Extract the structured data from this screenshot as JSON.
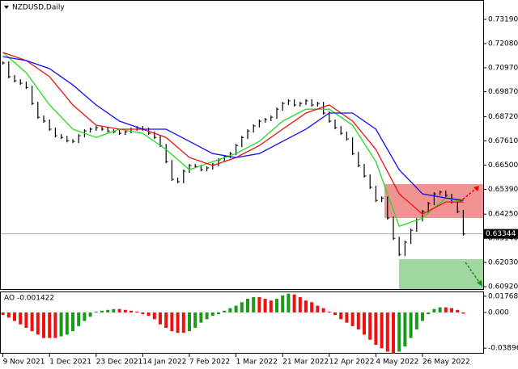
{
  "chart_data": {
    "type": "ohlc",
    "title": "NZDUSD,Daily",
    "categories": [
      "9 Nov 2021",
      null,
      null,
      null,
      null,
      null,
      null,
      null,
      "1 Dec 2021",
      null,
      null,
      null,
      null,
      null,
      null,
      null,
      "23 Dec 2021",
      null,
      null,
      null,
      null,
      null,
      null,
      null,
      "14 Jan 2022",
      null,
      null,
      null,
      null,
      null,
      null,
      null,
      "7 Feb 2022",
      null,
      null,
      null,
      null,
      null,
      null,
      null,
      "1 Mar 2022",
      null,
      null,
      null,
      null,
      null,
      null,
      null,
      "21 Mar 2022",
      null,
      null,
      null,
      null,
      null,
      null,
      null,
      "12 Apr 2022",
      null,
      null,
      null,
      null,
      null,
      null,
      null,
      "4 May 2022",
      null,
      null,
      null,
      null,
      null,
      null,
      null,
      "26 May 2022",
      null,
      null,
      null,
      null,
      null,
      null,
      null
    ],
    "close": [
      0.7119,
      0.7056,
      0.7037,
      0.7026,
      0.7007,
      0.6933,
      0.687,
      0.6852,
      0.6815,
      0.6785,
      0.6777,
      0.6762,
      0.6759,
      0.6785,
      0.6807,
      0.6815,
      0.6822,
      0.6815,
      0.6807,
      0.6803,
      0.6796,
      0.6803,
      0.6815,
      0.6822,
      0.6815,
      0.6796,
      0.6777,
      0.674,
      0.6666,
      0.6585,
      0.6574,
      0.6622,
      0.6648,
      0.6644,
      0.6629,
      0.6637,
      0.6652,
      0.6674,
      0.6689,
      0.6703,
      0.674,
      0.6777,
      0.6807,
      0.683,
      0.6852,
      0.6859,
      0.687,
      0.6907,
      0.6933,
      0.6945,
      0.6926,
      0.6933,
      0.6945,
      0.6926,
      0.6933,
      0.6889,
      0.6852,
      0.6822,
      0.6796,
      0.677,
      0.6703,
      0.6648,
      0.66,
      0.6548,
      0.6488,
      0.6499,
      0.6407,
      0.6314,
      0.624,
      0.6296,
      0.6351,
      0.6399,
      0.6437,
      0.6474,
      0.6518,
      0.6526,
      0.6511,
      0.6481,
      0.6437,
      0.6334
    ],
    "bar_color": "#000000",
    "series": [
      {
        "color": "#22dd22",
        "x": [
          0,
          4,
          8,
          12,
          16,
          20,
          24,
          28,
          32,
          36,
          40,
          44,
          48,
          52,
          56,
          60,
          64,
          68,
          72,
          76,
          79
        ],
        "values": [
          0.7167,
          0.7074,
          0.6926,
          0.6815,
          0.6777,
          0.6815,
          0.6796,
          0.6722,
          0.6629,
          0.6666,
          0.6703,
          0.6759,
          0.6852,
          0.6907,
          0.6907,
          0.6833,
          0.6666,
          0.6369,
          0.6407,
          0.6499,
          0.6481
        ]
      },
      {
        "color": "#ee1111",
        "x": [
          0,
          4,
          8,
          12,
          16,
          20,
          24,
          28,
          32,
          36,
          40,
          44,
          48,
          52,
          56,
          60,
          64,
          68,
          72,
          76,
          79
        ],
        "values": [
          0.7167,
          0.713,
          0.7056,
          0.6926,
          0.6833,
          0.6815,
          0.6815,
          0.6777,
          0.6685,
          0.6648,
          0.6685,
          0.674,
          0.6815,
          0.6889,
          0.6926,
          0.6852,
          0.6722,
          0.6518,
          0.6425,
          0.6481,
          0.6481
        ]
      },
      {
        "color": "#1111ee",
        "x": [
          0,
          4,
          8,
          12,
          16,
          20,
          24,
          28,
          32,
          36,
          40,
          44,
          48,
          52,
          56,
          60,
          64,
          68,
          72,
          76,
          79
        ],
        "values": [
          0.7148,
          0.713,
          0.7093,
          0.7018,
          0.6926,
          0.6852,
          0.6815,
          0.6815,
          0.6759,
          0.6703,
          0.6685,
          0.6703,
          0.6759,
          0.6815,
          0.6889,
          0.6889,
          0.6815,
          0.6629,
          0.6518,
          0.6499,
          0.6488
        ]
      }
    ],
    "last_price": 0.63344,
    "ylim": [
      0.6081,
      0.7408
    ],
    "yticks": [
      {
        "value": 0.7319,
        "label": "0.73190"
      },
      {
        "value": 0.7208,
        "label": "0.72080"
      },
      {
        "value": 0.7097,
        "label": "0.70970"
      },
      {
        "value": 0.6987,
        "label": "0.69870"
      },
      {
        "value": 0.6872,
        "label": "0.68720"
      },
      {
        "value": 0.6761,
        "label": "0.67610"
      },
      {
        "value": 0.665,
        "label": "0.66500"
      },
      {
        "value": 0.6539,
        "label": "0.65390"
      },
      {
        "value": 0.6425,
        "label": "0.64250"
      },
      {
        "value": 0.6314,
        "label": "0.63140"
      },
      {
        "value": 0.6203,
        "label": "0.62030"
      },
      {
        "value": 0.6092,
        "label": "0.60920"
      }
    ],
    "indicator": {
      "type": "histogram",
      "title": "AO -0.001422",
      "values": [
        -0.0028,
        -0.0056,
        -0.0093,
        -0.013,
        -0.0168,
        -0.0205,
        -0.0242,
        -0.0279,
        -0.0279,
        -0.0279,
        -0.0261,
        -0.0242,
        -0.0205,
        -0.0149,
        -0.0093,
        -0.0047,
        0.0009,
        0.0019,
        0.0028,
        0.0037,
        0.0037,
        0.0028,
        0.0019,
        0.0009,
        -0.0019,
        -0.0037,
        -0.0074,
        -0.013,
        -0.0168,
        -0.0205,
        -0.0223,
        -0.0223,
        -0.0205,
        -0.0168,
        -0.0112,
        -0.0074,
        -0.0037,
        -0.0019,
        0.0019,
        0.0047,
        0.0074,
        0.0112,
        0.0149,
        0.0168,
        0.0168,
        0.0149,
        0.013,
        0.0149,
        0.0186,
        0.0205,
        0.0196,
        0.0168,
        0.013,
        0.0112,
        0.0074,
        0.0047,
        0.0009,
        -0.0028,
        -0.0074,
        -0.0112,
        -0.0149,
        -0.0186,
        -0.0242,
        -0.0298,
        -0.0354,
        -0.0391,
        -0.0428,
        -0.0447,
        -0.0428,
        -0.0372,
        -0.0279,
        -0.0186,
        -0.0093,
        -0.0019,
        0.0037,
        0.0056,
        0.0056,
        0.0047,
        0.0028,
        -0.001422
      ],
      "up_color": "#1a9a1a",
      "down_color": "#ee1111",
      "ylim": [
        -0.045,
        0.022
      ],
      "yticks": [
        0.017685,
        {
          "value": 0,
          "label": "0.000"
        },
        -0.03896
      ]
    }
  }
}
